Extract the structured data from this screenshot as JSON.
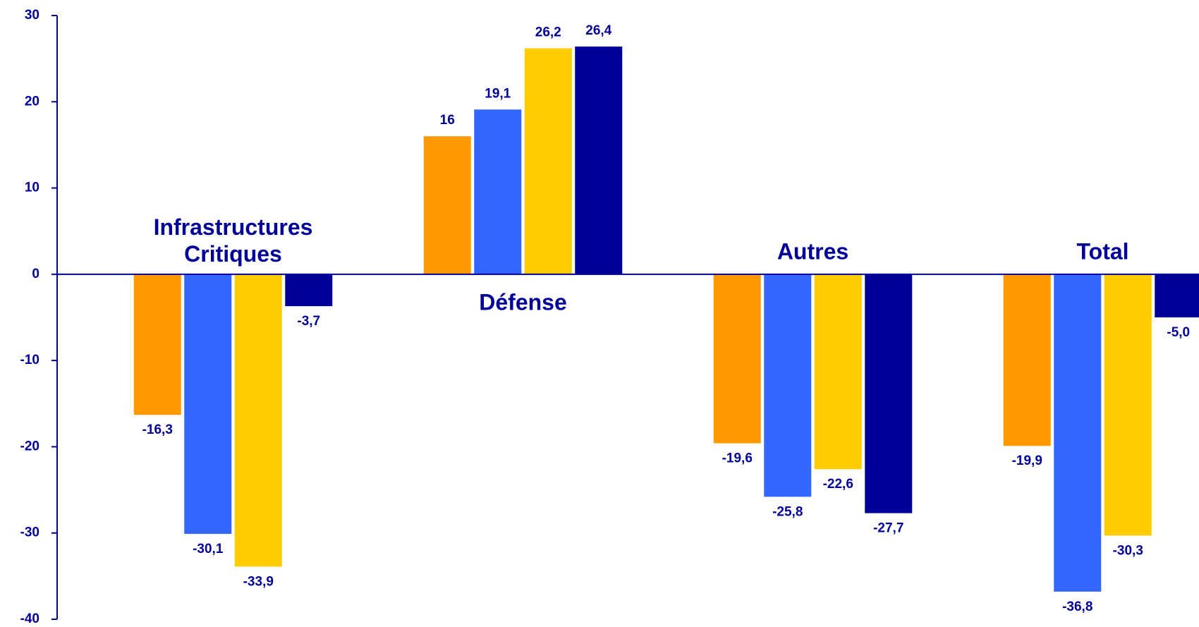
{
  "chart_data": {
    "type": "bar",
    "categories": [
      "Infrastructures Critiques",
      "Défense",
      "Autres",
      "Total"
    ],
    "series": [
      {
        "color": "#FF9900",
        "values": [
          -16.3,
          16,
          -19.6,
          -19.9
        ],
        "value_labels": [
          "-16,3",
          "16",
          "-19,6",
          "-19,9"
        ]
      },
      {
        "color": "#3366FF",
        "values": [
          -30.1,
          19.1,
          -25.8,
          -36.8
        ],
        "value_labels": [
          "-30,1",
          "19,1",
          "-25,8",
          "-36,8"
        ]
      },
      {
        "color": "#FFCC00",
        "values": [
          -33.9,
          26.2,
          -22.6,
          -30.3
        ],
        "value_labels": [
          "-33,9",
          "26,2",
          "-22,6",
          "-30,3"
        ]
      },
      {
        "color": "#000099",
        "values": [
          -3.7,
          26.4,
          -27.7,
          -5.0
        ],
        "value_labels": [
          "-3,7",
          "26,4",
          "-27,7",
          "-5,0"
        ]
      }
    ],
    "ylim": [
      -40,
      30
    ],
    "yticks": [
      -40,
      -30,
      -20,
      -10,
      0,
      10,
      20,
      30
    ]
  }
}
